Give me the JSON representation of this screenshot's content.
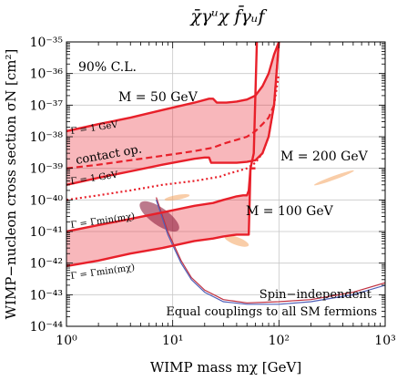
{
  "chart_data": {
    "type": "line",
    "title": "χ̄γᵘχ f̄γᵤf",
    "xlabel": "WIMP mass mχ [GeV]",
    "ylabel": "WIMP−nucleon cross section σN [cm²]",
    "xscale": "log",
    "yscale": "log",
    "xlim": [
      1,
      1000
    ],
    "ylim": [
      1e-44,
      1e-35
    ],
    "grid": true,
    "x_ticks": [
      {
        "value": 1,
        "label": "10⁰"
      },
      {
        "value": 10,
        "label": "10¹"
      },
      {
        "value": 100,
        "label": "10²"
      },
      {
        "value": 1000,
        "label": "10³"
      }
    ],
    "y_ticks": [
      {
        "value": 1e-44,
        "label": "10⁻⁴⁴"
      },
      {
        "value": 1e-43,
        "label": "10⁻⁴³"
      },
      {
        "value": 1e-42,
        "label": "10⁻⁴²"
      },
      {
        "value": 1e-41,
        "label": "10⁻⁴¹"
      },
      {
        "value": 1e-40,
        "label": "10⁻⁴⁰"
      },
      {
        "value": 1e-39,
        "label": "10⁻³⁹"
      },
      {
        "value": 1e-38,
        "label": "10⁻³⁸"
      },
      {
        "value": 1e-37,
        "label": "10⁻³⁷"
      },
      {
        "value": 1e-36,
        "label": "10⁻³⁶"
      },
      {
        "value": 1e-35,
        "label": "10⁻³⁵"
      }
    ],
    "annotations": {
      "cl": "90% C.L.",
      "m50": "M = 50 GeV",
      "m100": "M = 100 GeV",
      "m200": "M = 200 GeV",
      "contact": "contact op.",
      "gamma1_upper": "Γ = 1 GeV",
      "gamma1_lower": "Γ = 1 GeV",
      "gammamin_upper": "Γ = Γmin(mχ)",
      "gammamin_lower": "Γ = Γmin(mχ)",
      "footer1": "Spin−independent",
      "footer2": "Equal couplings to all SM fermions"
    },
    "colors": {
      "limit": "#e8202a",
      "fill_outer": "#f9c0c0",
      "fill_inner": "#ef7f7f",
      "blob": "#f4a460",
      "direct_blue": "#5060b8",
      "direct_red": "#c03040",
      "direct_dark": "#902040"
    },
    "series": [
      {
        "name": "M = 50 GeV, Γ = 1 GeV",
        "style": "solid",
        "x": [
          1,
          2,
          4,
          8,
          16,
          22,
          24,
          26,
          28,
          32,
          40,
          50,
          60,
          70,
          80,
          90,
          100
        ],
        "y": [
          1.5e-38,
          2.5e-38,
          4e-38,
          7e-38,
          1.2e-37,
          1.6e-37,
          1.6e-37,
          1.2e-37,
          1.2e-37,
          1.2e-37,
          1.3e-37,
          1.5e-37,
          2e-37,
          4e-37,
          1e-36,
          4e-36,
          1e-35
        ]
      },
      {
        "name": "M = 50 GeV, Γ = Γmin",
        "style": "solid",
        "x": [
          1,
          2,
          4,
          8,
          16,
          20,
          22,
          23,
          24,
          26,
          30,
          40,
          50,
          60,
          70,
          80,
          90,
          100
        ],
        "y": [
          3e-40,
          5e-40,
          8e-40,
          1.3e-39,
          2e-39,
          2.2e-39,
          2.2e-39,
          1.5e-39,
          1.5e-39,
          1.5e-39,
          1.5e-39,
          1.5e-39,
          1.6e-39,
          1.8e-39,
          3e-39,
          1e-38,
          1e-37,
          1e-35
        ]
      },
      {
        "name": "contact op.",
        "style": "dashed",
        "x": [
          1,
          2,
          4,
          8,
          16,
          24,
          30,
          40,
          50,
          60,
          70,
          80,
          90,
          100
        ],
        "y": [
          1e-39,
          1.3e-39,
          1.8e-39,
          2.5e-39,
          3.5e-39,
          4.5e-39,
          6e-39,
          8e-39,
          1e-38,
          1.5e-38,
          2.5e-38,
          4e-38,
          1e-37,
          1e-35
        ]
      },
      {
        "name": "M = 100 GeV, Γ = 1 GeV",
        "style": "solid",
        "x": [
          1,
          2,
          4,
          8,
          16,
          24,
          30,
          40,
          46,
          50,
          52,
          54,
          58,
          62
        ],
        "y": [
          1e-41,
          1.6e-41,
          2.5e-41,
          4e-41,
          6.5e-41,
          8e-41,
          1e-40,
          1.3e-40,
          1.4e-40,
          1.4e-40,
          2e-40,
          1e-39,
          3e-39,
          1e-35
        ]
      },
      {
        "name": "M = 100 GeV, Γ = Γmin",
        "style": "solid",
        "x": [
          1,
          2,
          4,
          8,
          16,
          24,
          30,
          40,
          46,
          50,
          52,
          54,
          58,
          60
        ],
        "y": [
          8e-43,
          1.2e-42,
          2e-42,
          3e-42,
          5e-42,
          6e-42,
          7e-42,
          8e-42,
          8e-42,
          8e-42,
          8e-42,
          1e-39,
          1e-39,
          1e-39
        ]
      },
      {
        "name": "M = 200 GeV",
        "style": "dotted",
        "x": [
          1,
          2,
          4,
          8,
          16,
          20,
          24,
          28,
          32,
          40,
          50,
          60,
          70,
          80,
          90,
          100
        ],
        "y": [
          1e-40,
          1.4e-40,
          2e-40,
          3e-40,
          4e-40,
          4.5e-40,
          5e-40,
          5.5e-40,
          6.5e-40,
          8e-40,
          1e-39,
          1.5e-39,
          3e-39,
          1e-38,
          1e-37,
          1e-36
        ]
      }
    ],
    "regions": [
      {
        "name": "M = 50 GeV band",
        "x": [
          1,
          2,
          4,
          8,
          16,
          22,
          24,
          26,
          28,
          32,
          40,
          50,
          60,
          70,
          80,
          90,
          100
        ],
        "lower": [
          3e-40,
          5e-40,
          8e-40,
          1.3e-39,
          2e-39,
          2.2e-39,
          1.5e-39,
          1.5e-39,
          1.5e-39,
          1.5e-39,
          1.5e-39,
          1.6e-39,
          1.8e-39,
          3e-39,
          1e-38,
          1e-37,
          1e-35
        ],
        "upper": [
          1.5e-38,
          2.5e-38,
          4e-38,
          7e-38,
          1.2e-37,
          1.6e-37,
          1.6e-37,
          1.2e-37,
          1.2e-37,
          1.2e-37,
          1.3e-37,
          1.5e-37,
          2e-37,
          4e-37,
          1e-36,
          4e-36,
          1e-35
        ]
      },
      {
        "name": "M = 100 GeV band",
        "x": [
          1,
          2,
          4,
          8,
          16,
          24,
          30,
          40,
          46,
          50,
          52,
          54
        ],
        "lower": [
          8e-43,
          1.2e-42,
          2e-42,
          3e-42,
          5e-42,
          6e-42,
          7e-42,
          8e-42,
          8e-42,
          8e-42,
          8e-42,
          1e-39
        ],
        "upper": [
          1e-41,
          1.6e-41,
          2.5e-41,
          4e-41,
          6.5e-41,
          8e-41,
          1e-40,
          1.3e-40,
          1.4e-40,
          1.4e-40,
          2e-40,
          1e-39
        ]
      }
    ],
    "direct_detection": {
      "blue": {
        "x": [
          7,
          9,
          12,
          15,
          20,
          30,
          50,
          100,
          200,
          500,
          1000
        ],
        "y": [
          1e-40,
          8e-42,
          1e-42,
          3e-43,
          1.2e-43,
          6e-44,
          5e-44,
          5e-44,
          6e-44,
          1e-43,
          2e-43
        ]
      },
      "red": {
        "x": [
          7,
          9,
          12,
          15,
          20,
          30,
          50,
          100,
          200,
          500,
          1000
        ],
        "y": [
          1.2e-40,
          1e-41,
          1.2e-42,
          3.5e-43,
          1.4e-43,
          7e-44,
          5.5e-44,
          6e-44,
          7e-44,
          1.2e-43,
          2.4e-43
        ]
      }
    },
    "signal_regions": [
      {
        "name": "dark-red",
        "cx": 7.5,
        "cy": 3e-41,
        "wx": 0.22,
        "wy": 0.55,
        "rot": 35,
        "opacity": 0.6
      },
      {
        "name": "orange-1",
        "cx": 11,
        "cy": 1.2e-40,
        "wx": 0.12,
        "wy": 0.15,
        "rot": -10,
        "opacity": 0.55
      },
      {
        "name": "orange-2",
        "cx": 40,
        "cy": 5e-42,
        "wx": 0.12,
        "wy": 0.25,
        "rot": 20,
        "opacity": 0.55
      },
      {
        "name": "orange-3",
        "cx": 330,
        "cy": 5e-40,
        "wx": 0.2,
        "wy": 0.12,
        "rot": -20,
        "opacity": 0.55
      }
    ]
  }
}
